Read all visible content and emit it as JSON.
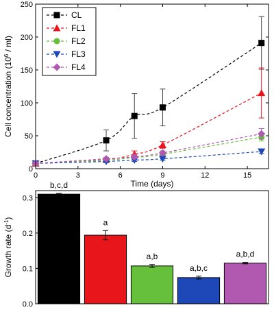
{
  "chart_data": [
    {
      "type": "line",
      "xlabel": "Time (days)",
      "ylabel_main": "Cell concentration (10",
      "ylabel_sup": "6",
      "ylabel_tail": " / ml)",
      "xlim": [
        0,
        16.5
      ],
      "ylim": [
        0,
        250
      ],
      "x_ticks": [
        0,
        3,
        6,
        9,
        12,
        15
      ],
      "y_ticks": [
        0,
        50,
        100,
        150,
        200,
        250
      ],
      "legend_position": "top-left",
      "series": [
        {
          "name": "CL",
          "color": "#000000",
          "marker": "square",
          "x": [
            0,
            5,
            7,
            9,
            16
          ],
          "y": [
            8,
            43,
            80,
            93,
            191
          ],
          "err": [
            2,
            16,
            34,
            28,
            40
          ]
        },
        {
          "name": "FL1",
          "color": "#e8151b",
          "marker": "triangle-up",
          "x": [
            0,
            5,
            7,
            9,
            16
          ],
          "y": [
            8,
            14,
            22,
            36,
            115
          ],
          "err": [
            2,
            3,
            5,
            5,
            38
          ]
        },
        {
          "name": "FL2",
          "color": "#66c03c",
          "marker": "circle",
          "x": [
            0,
            5,
            7,
            9,
            16
          ],
          "y": [
            8,
            13,
            17,
            22,
            48
          ],
          "err": [
            2,
            2,
            3,
            3,
            6
          ]
        },
        {
          "name": "FL3",
          "color": "#1e48b8",
          "marker": "triangle-down",
          "x": [
            0,
            5,
            7,
            9,
            16
          ],
          "y": [
            8,
            11,
            13,
            15,
            26
          ],
          "err": [
            2,
            2,
            2,
            2,
            3
          ]
        },
        {
          "name": "FL4",
          "color": "#b158b0",
          "marker": "diamond",
          "x": [
            0,
            5,
            7,
            9,
            16
          ],
          "y": [
            8,
            15,
            18,
            24,
            53
          ],
          "err": [
            2,
            2,
            3,
            3,
            8
          ]
        }
      ]
    },
    {
      "type": "bar",
      "ylabel_main": "Growth rate (d",
      "ylabel_sup": "-1",
      "ylabel_tail": ")",
      "ylim": [
        0,
        0.32
      ],
      "y_ticks": [
        0.0,
        0.1,
        0.2,
        0.3
      ],
      "y_tick_labels": [
        "0.0",
        "0.1",
        "0.2",
        "0.3"
      ],
      "categories": [
        "CL",
        "FL1",
        "FL2",
        "FL3",
        "FL4"
      ],
      "values": [
        0.31,
        0.194,
        0.107,
        0.074,
        0.115
      ],
      "err": [
        0.002,
        0.013,
        0.004,
        0.004,
        0.002
      ],
      "colors": [
        "#000000",
        "#e8151b",
        "#66c03c",
        "#1e48b8",
        "#b158b0"
      ],
      "annotations": [
        "b,c,d",
        "a",
        "a,b",
        "a,b,c",
        "a,b,d"
      ]
    }
  ]
}
